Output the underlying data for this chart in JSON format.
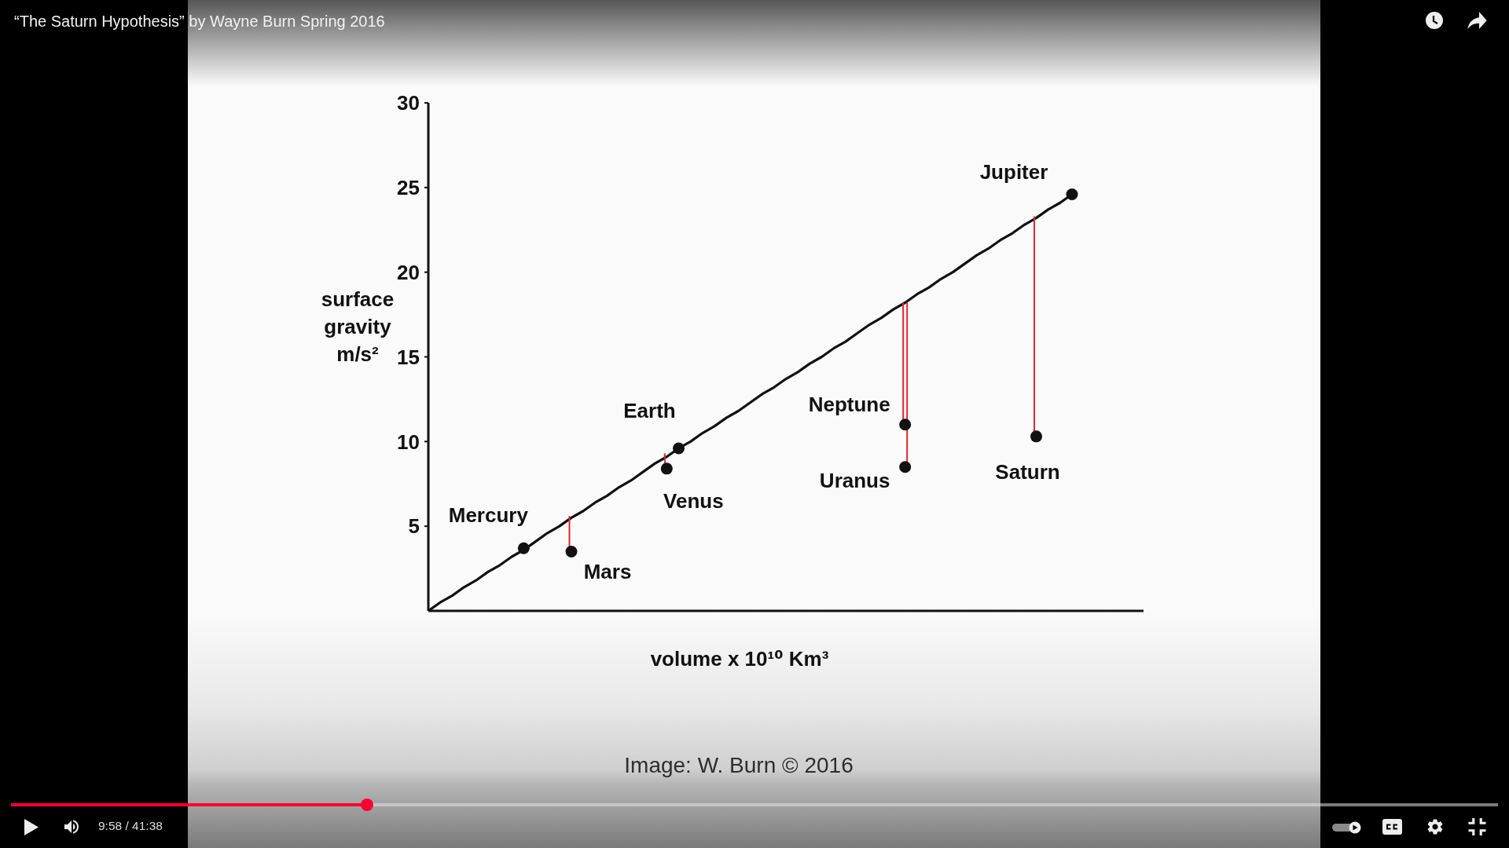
{
  "chart_data": {
    "type": "scatter",
    "title": "“The Saturn Hypothesis” by Wayne Burn Spring 2016",
    "xlabel": "volume x 10¹⁰ Km³",
    "ylabel": "surface gravity m/s²",
    "categories": [
      null,
      null,
      null,
      null,
      null,
      null,
      null,
      null,
      null,
      null,
      null,
      null,
      null,
      null,
      null,
      null,
      null,
      null,
      null,
      null,
      null,
      null,
      null,
      null,
      null,
      null,
      null,
      null,
      null,
      null,
      null,
      null,
      null,
      null,
      null,
      null,
      null,
      null,
      null,
      null,
      null,
      null,
      null,
      null,
      null,
      null,
      null,
      null,
      null,
      null,
      null,
      null,
      null,
      null,
      null,
      null,
      null,
      null,
      null,
      null,
      null
    ],
    "series": [
      {
        "type": "line",
        "color": "#111111",
        "marker": "none",
        "values": [
          0,
          0.5,
          0.9,
          1.4,
          1.8,
          2.3,
          2.7,
          3.2,
          3.6,
          4.1,
          4.6,
          5.0,
          5.5,
          5.9,
          6.4,
          6.8,
          7.3,
          7.7,
          8.2,
          8.7,
          9.1,
          9.6,
          10.0,
          10.5,
          10.9,
          11.4,
          11.8,
          12.3,
          12.8,
          13.2,
          13.7,
          14.1,
          14.6,
          15.0,
          15.5,
          15.9,
          16.4,
          16.9,
          17.3,
          17.8,
          18.2,
          18.7,
          19.1,
          19.6,
          20.0,
          20.5,
          21.0,
          21.4,
          21.9,
          22.3,
          22.8,
          23.2,
          23.7,
          24.1,
          24.6,
          null,
          null,
          null,
          null,
          null,
          null
        ]
      },
      {
        "color": "#111111",
        "values": [
          null,
          null,
          null,
          null,
          null,
          null,
          null,
          null,
          3.7,
          null,
          null,
          null,
          3.5,
          null,
          null,
          null,
          null,
          null,
          null,
          null,
          8.4,
          9.6,
          null,
          null,
          null,
          null,
          null,
          null,
          null,
          null,
          null,
          null,
          null,
          null,
          null,
          null,
          null,
          null,
          null,
          null,
          11.0,
          null,
          null,
          null,
          null,
          null,
          null,
          null,
          null,
          null,
          null,
          10.3,
          null,
          null,
          24.6,
          null,
          null,
          null,
          null,
          null,
          null
        ],
        "errors": [
          null,
          null,
          null,
          null,
          null,
          null,
          null,
          null,
          null,
          null,
          null,
          null,
          [
            3.5,
            5.6
          ],
          null,
          null,
          null,
          null,
          null,
          null,
          null,
          [
            8.4,
            9.3
          ],
          null,
          null,
          null,
          null,
          null,
          null,
          null,
          null,
          null,
          null,
          null,
          null,
          null,
          null,
          null,
          null,
          null,
          null,
          null,
          [
            11.0,
            18.2
          ],
          null,
          null,
          null,
          null,
          null,
          null,
          null,
          null,
          null,
          null,
          [
            10.3,
            23.3
          ],
          null,
          null,
          null,
          null,
          null,
          null,
          null,
          null,
          null
        ],
        "value_labels": [
          null,
          null,
          null,
          null,
          null,
          null,
          null,
          null,
          "Mercury",
          null,
          null,
          null,
          "Mars",
          null,
          null,
          null,
          null,
          null,
          null,
          null,
          "Venus",
          "Earth",
          null,
          null,
          null,
          null,
          null,
          null,
          null,
          null,
          null,
          null,
          null,
          null,
          null,
          null,
          null,
          null,
          null,
          null,
          "Neptune",
          null,
          null,
          null,
          null,
          null,
          null,
          null,
          null,
          null,
          null,
          "Saturn",
          null,
          null,
          "Jupiter",
          null,
          null,
          null,
          null,
          null,
          null
        ]
      },
      {
        "color": "#111111",
        "values": [
          null,
          null,
          null,
          null,
          null,
          null,
          null,
          null,
          null,
          null,
          null,
          null,
          null,
          null,
          null,
          null,
          null,
          null,
          null,
          null,
          null,
          null,
          null,
          null,
          null,
          null,
          null,
          null,
          null,
          null,
          null,
          null,
          null,
          null,
          null,
          null,
          null,
          null,
          null,
          null,
          8.5,
          null,
          null,
          null,
          null,
          null,
          null,
          null,
          null,
          null,
          null,
          null,
          null,
          null,
          null,
          null,
          null,
          null,
          null,
          null,
          null
        ],
        "errors": [
          null,
          null,
          null,
          null,
          null,
          null,
          null,
          null,
          null,
          null,
          null,
          null,
          null,
          null,
          null,
          null,
          null,
          null,
          null,
          null,
          null,
          null,
          null,
          null,
          null,
          null,
          null,
          null,
          null,
          null,
          null,
          null,
          null,
          null,
          null,
          null,
          null,
          null,
          null,
          null,
          [
            8.5,
            18.2
          ],
          null,
          null,
          null,
          null,
          null,
          null,
          null,
          null,
          null,
          null,
          null,
          null,
          null,
          null,
          null,
          null,
          null,
          null,
          null,
          null
        ],
        "value_labels": [
          null,
          null,
          null,
          null,
          null,
          null,
          null,
          null,
          null,
          null,
          null,
          null,
          null,
          null,
          null,
          null,
          null,
          null,
          null,
          null,
          null,
          null,
          null,
          null,
          null,
          null,
          null,
          null,
          null,
          null,
          null,
          null,
          null,
          null,
          null,
          null,
          null,
          null,
          null,
          null,
          "Uranus",
          null,
          null,
          null,
          null,
          null,
          null,
          null,
          null,
          null,
          null,
          null,
          null,
          null,
          null,
          null,
          null,
          null,
          null,
          null,
          null
        ]
      }
    ],
    "marker": "circle",
    "ylim": [
      0,
      30
    ],
    "yticks": [
      5,
      10,
      15,
      20,
      25,
      30
    ],
    "tick_labels": "y",
    "annotations": [
      "Image: W. Burn © 2016",
      "9:58 / 41:38"
    ]
  }
}
